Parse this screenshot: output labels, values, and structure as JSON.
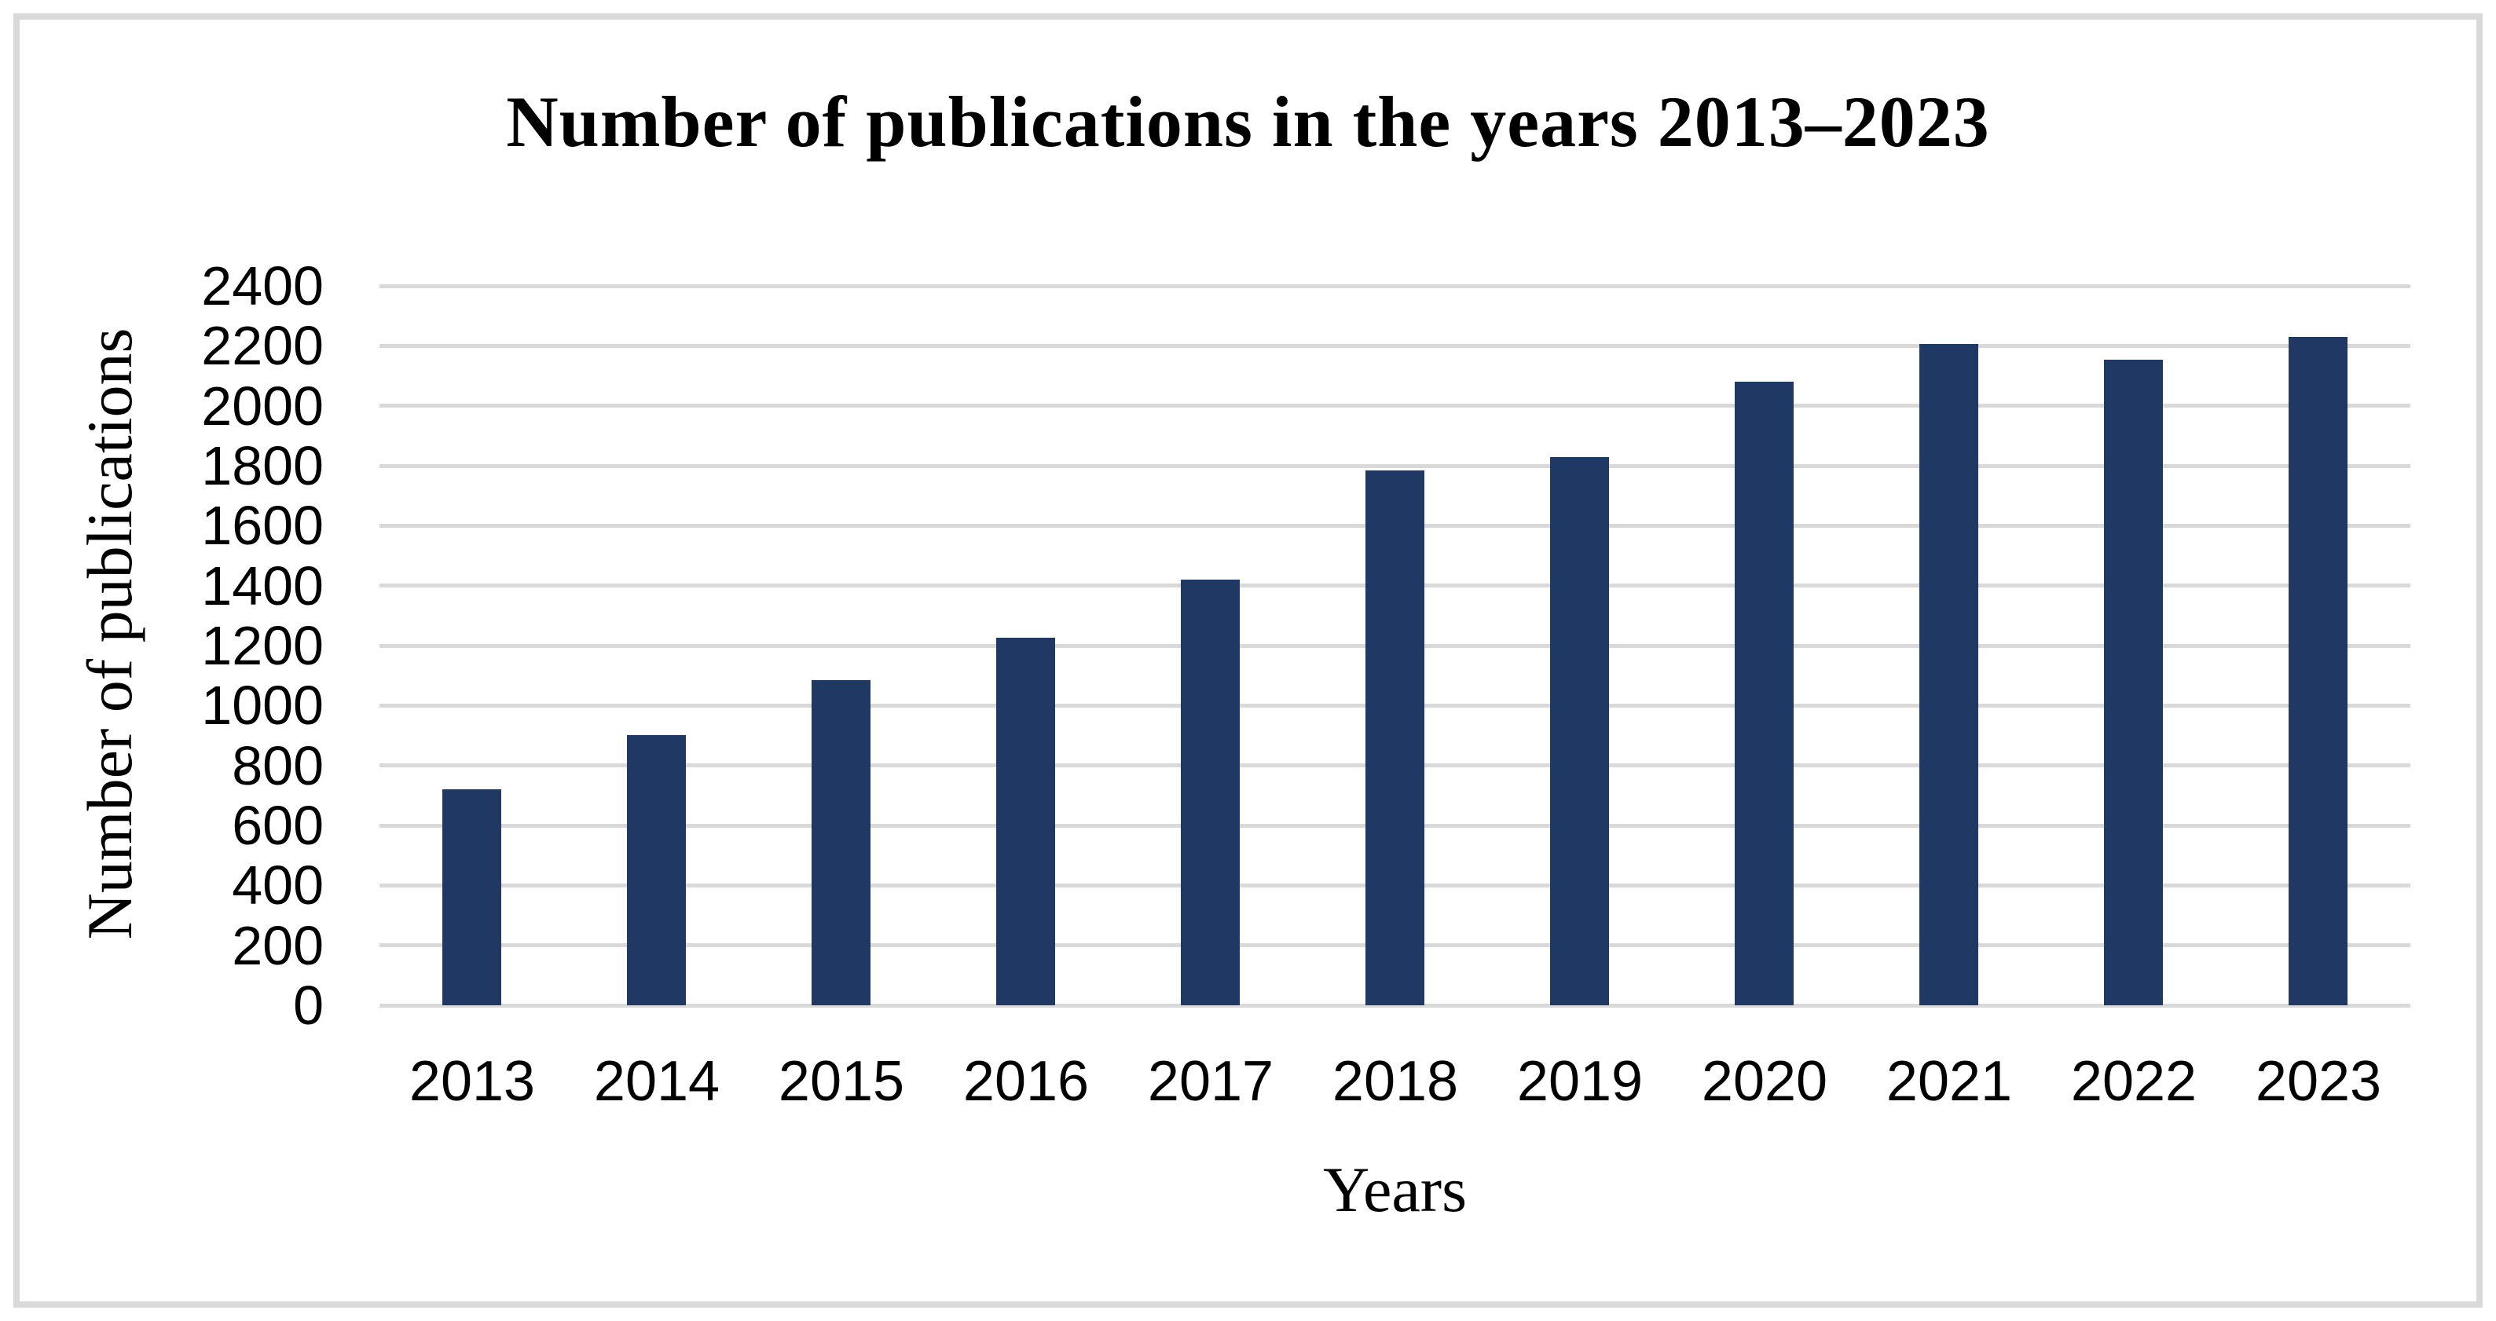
{
  "figure": {
    "background_color": "#ffffff",
    "frame_color": "#d9d9d9"
  },
  "chart_data": {
    "type": "bar",
    "title": "Number of publications in the years 2013–2023",
    "xlabel": "Years",
    "ylabel": "Number of publications",
    "categories": [
      "2013",
      "2014",
      "2015",
      "2016",
      "2017",
      "2018",
      "2019",
      "2020",
      "2021",
      "2022",
      "2023"
    ],
    "values": [
      720,
      900,
      1085,
      1225,
      1420,
      1785,
      1830,
      2080,
      2205,
      2155,
      2230
    ],
    "ylim": [
      0,
      2400
    ],
    "yticks": [
      0,
      200,
      400,
      600,
      800,
      1000,
      1200,
      1400,
      1600,
      1800,
      2000,
      2200,
      2400
    ],
    "grid": "horizontal",
    "legend": "none",
    "bar_color": "#1f3864",
    "gridline_color": "#d9d9d9"
  }
}
